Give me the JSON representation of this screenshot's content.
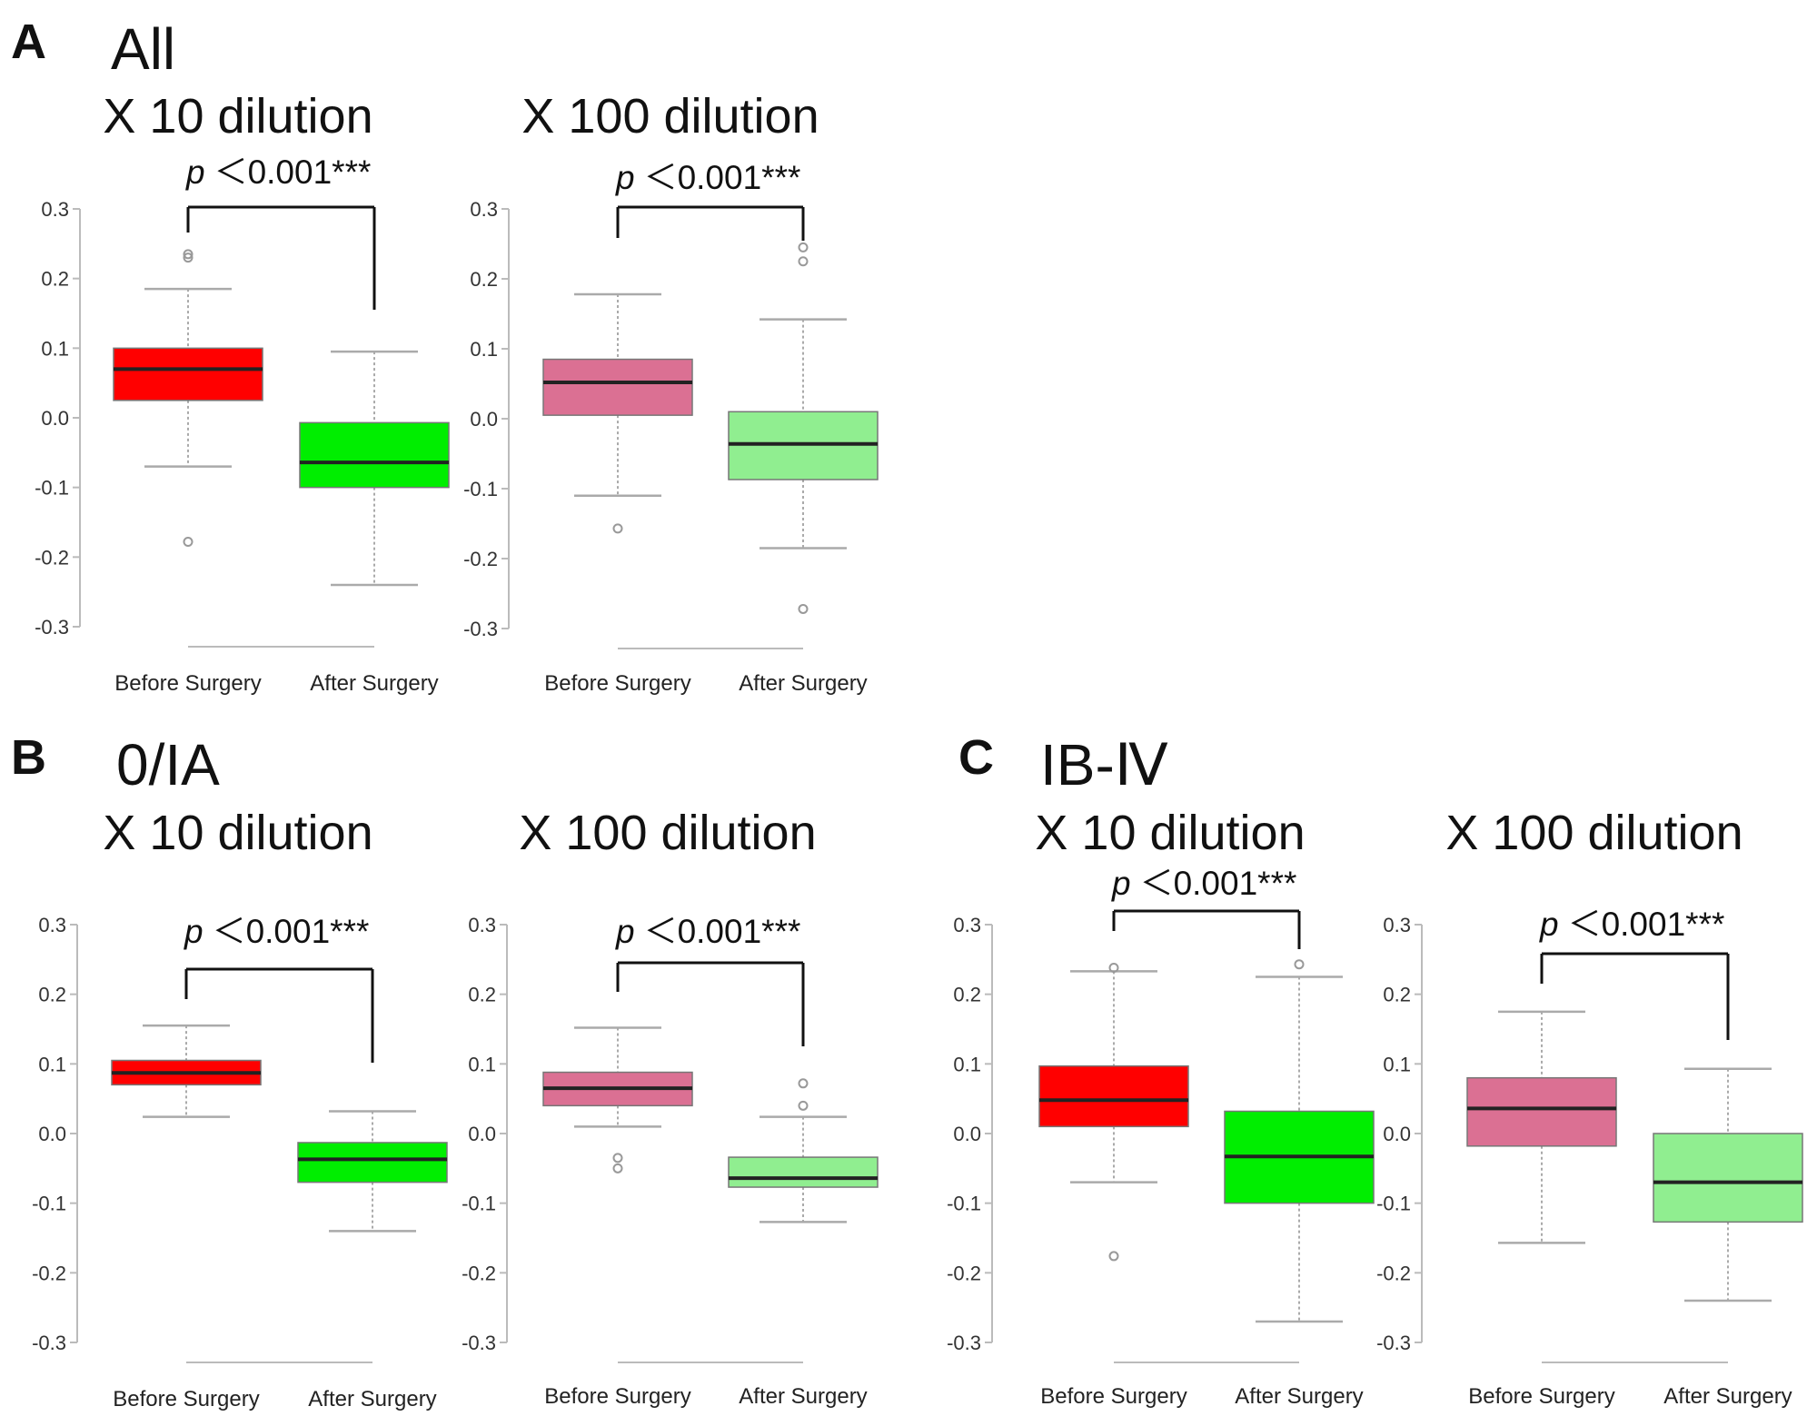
{
  "panels": [
    {
      "letter": "A",
      "group_title": "All"
    },
    {
      "letter": "B",
      "group_title": "0/IA"
    },
    {
      "letter": "C",
      "group_title": "IB-Ⅳ"
    }
  ],
  "colors": {
    "x10_before": "#ff0000",
    "x10_after": "#00ee00",
    "x100_before": "#db7093",
    "x100_after": "#90ee90",
    "whisker": "#aaaaaa",
    "outlier": "#999999",
    "median": "#222222"
  },
  "chart_data": [
    {
      "type": "box",
      "panel": "A",
      "title": "X 10 dilution",
      "categories": [
        "Before Surgery",
        "After Surgery"
      ],
      "ylim": [
        -0.3,
        0.3
      ],
      "yticks": [
        "0.3",
        "0.2",
        "0.1",
        "0.0",
        "-0.1",
        "-0.2",
        "-0.3"
      ],
      "p_label": "p",
      "p_value": "＜0.001***",
      "boxes": [
        {
          "category": "Before Surgery",
          "whisker_low": -0.07,
          "q1": 0.025,
          "median": 0.07,
          "q3": 0.1,
          "whisker_high": 0.185,
          "outliers": [
            0.235,
            0.23,
            -0.178
          ],
          "color_key": "x10_before"
        },
        {
          "category": "After Surgery",
          "whisker_low": -0.24,
          "q1": -0.1,
          "median": -0.064,
          "q3": -0.007,
          "whisker_high": 0.095,
          "outliers": [],
          "color_key": "x10_after"
        }
      ]
    },
    {
      "type": "box",
      "panel": "A",
      "title": "X 100 dilution",
      "categories": [
        "Before Surgery",
        "After Surgery"
      ],
      "ylim": [
        -0.3,
        0.3
      ],
      "yticks": [
        "0.3",
        "0.2",
        "0.1",
        "0.0",
        "-0.1",
        "-0.2",
        "-0.3"
      ],
      "p_label": "p",
      "p_value": "＜0.001***",
      "boxes": [
        {
          "category": "Before Surgery",
          "whisker_low": -0.11,
          "q1": 0.005,
          "median": 0.052,
          "q3": 0.085,
          "whisker_high": 0.178,
          "outliers": [
            -0.157
          ],
          "color_key": "x100_before"
        },
        {
          "category": "After Surgery",
          "whisker_low": -0.185,
          "q1": -0.087,
          "median": -0.036,
          "q3": 0.01,
          "whisker_high": 0.142,
          "outliers": [
            0.245,
            0.225,
            -0.272
          ],
          "color_key": "x100_after"
        }
      ]
    },
    {
      "type": "box",
      "panel": "B",
      "title": "X 10 dilution",
      "categories": [
        "Before Surgery",
        "After Surgery"
      ],
      "ylim": [
        -0.3,
        0.3
      ],
      "yticks": [
        "0.3",
        "0.2",
        "0.1",
        "0.0",
        "-0.1",
        "-0.2",
        "-0.3"
      ],
      "p_label": "p",
      "p_value": "＜0.001***",
      "boxes": [
        {
          "category": "Before Surgery",
          "whisker_low": 0.024,
          "q1": 0.07,
          "median": 0.087,
          "q3": 0.105,
          "whisker_high": 0.155,
          "outliers": [],
          "color_key": "x10_before"
        },
        {
          "category": "After Surgery",
          "whisker_low": -0.14,
          "q1": -0.07,
          "median": -0.037,
          "q3": -0.013,
          "whisker_high": 0.032,
          "outliers": [],
          "color_key": "x10_after"
        }
      ]
    },
    {
      "type": "box",
      "panel": "B",
      "title": "X 100 dilution",
      "categories": [
        "Before Surgery",
        "After Surgery"
      ],
      "ylim": [
        -0.3,
        0.3
      ],
      "yticks": [
        "0.3",
        "0.2",
        "0.1",
        "0.0",
        "-0.1",
        "-0.2",
        "-0.3"
      ],
      "p_label": "p",
      "p_value": "＜0.001***",
      "boxes": [
        {
          "category": "Before Surgery",
          "whisker_low": 0.01,
          "q1": 0.04,
          "median": 0.065,
          "q3": 0.088,
          "whisker_high": 0.152,
          "outliers": [
            -0.035,
            -0.05
          ],
          "color_key": "x100_before"
        },
        {
          "category": "After Surgery",
          "whisker_low": -0.127,
          "q1": -0.077,
          "median": -0.064,
          "q3": -0.034,
          "whisker_high": 0.024,
          "outliers": [
            0.072,
            0.04
          ],
          "color_key": "x100_after"
        }
      ]
    },
    {
      "type": "box",
      "panel": "C",
      "title": "X 10 dilution",
      "categories": [
        "Before Surgery",
        "After Surgery"
      ],
      "ylim": [
        -0.3,
        0.3
      ],
      "yticks": [
        "0.3",
        "0.2",
        "0.1",
        "0.0",
        "-0.1",
        "-0.2",
        "-0.3"
      ],
      "p_label": "p",
      "p_value": "＜0.001***",
      "boxes": [
        {
          "category": "Before Surgery",
          "whisker_low": -0.07,
          "q1": 0.01,
          "median": 0.048,
          "q3": 0.097,
          "whisker_high": 0.233,
          "outliers": [
            0.238,
            -0.176
          ],
          "color_key": "x10_before"
        },
        {
          "category": "After Surgery",
          "whisker_low": -0.27,
          "q1": -0.1,
          "median": -0.033,
          "q3": 0.032,
          "whisker_high": 0.225,
          "outliers": [
            0.243
          ],
          "color_key": "x10_after"
        }
      ]
    },
    {
      "type": "box",
      "panel": "C",
      "title": "X 100 dilution",
      "categories": [
        "Before Surgery",
        "After Surgery"
      ],
      "ylim": [
        -0.3,
        0.3
      ],
      "yticks": [
        "0.3",
        "0.2",
        "0.1",
        "0.0",
        "-0.1",
        "-0.2",
        "-0.3"
      ],
      "p_label": "p",
      "p_value": "＜0.001***",
      "boxes": [
        {
          "category": "Before Surgery",
          "whisker_low": -0.157,
          "q1": -0.018,
          "median": 0.036,
          "q3": 0.08,
          "whisker_high": 0.175,
          "outliers": [],
          "color_key": "x100_before"
        },
        {
          "category": "After Surgery",
          "whisker_low": -0.24,
          "q1": -0.127,
          "median": -0.07,
          "q3": 0.0,
          "whisker_high": 0.093,
          "outliers": [],
          "color_key": "x100_after"
        }
      ]
    }
  ]
}
